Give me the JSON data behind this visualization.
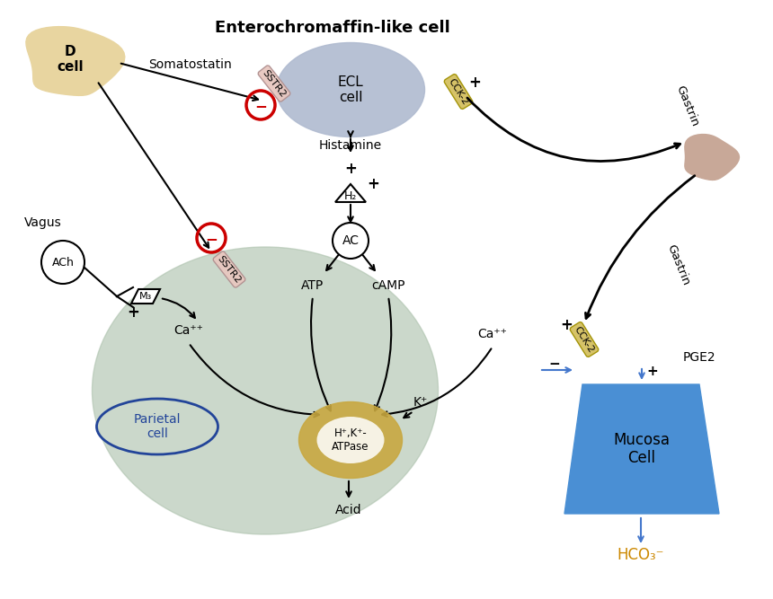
{
  "bg_color": "#ffffff",
  "ecl_label": "Enterochromaffin-like cell",
  "ecl_cell_label": "ECL\ncell",
  "d_cell_label": "D\ncell",
  "somatostatin_label": "Somatostatin",
  "sstr2_label": "SSTR2",
  "cck2_label": "CCK-2",
  "histamine_label": "Histamine",
  "h2_label": "H₂",
  "ac_label": "AC",
  "atp_label": "ATP",
  "camp_label": "cAMP",
  "ca_left_label": "Ca⁺⁺",
  "ca_right_label": "Ca⁺⁺",
  "parietal_label": "Parietal\ncell",
  "hk_atpase_label": "H⁺,K⁺-\nATPase",
  "k_label": "K⁺",
  "acid_label": "Acid",
  "vagus_label": "Vagus",
  "ach_label": "ACh",
  "m3_label": "M₃",
  "gastrin_label": "Gastrin",
  "pge2_label": "PGE2",
  "mucosa_label": "Mucosa\nCell",
  "hco3_label": "HCO₃⁻",
  "plus_label": "+",
  "minus_label": "−",
  "ecl_color": "#b0bbd0",
  "d_cell_color": "#e8d5a0",
  "gastrin_cell_color": "#c8a898",
  "parietal_bg": "#b0c4b0",
  "hkatpase_color": "#c8a840",
  "mucosa_color": "#4a8fd4",
  "sstr2_color": "#e8c8c0",
  "cck2_color": "#d4c060",
  "arrow_color": "#000000",
  "blue_arrow_color": "#4477cc",
  "red_color": "#cc0000"
}
